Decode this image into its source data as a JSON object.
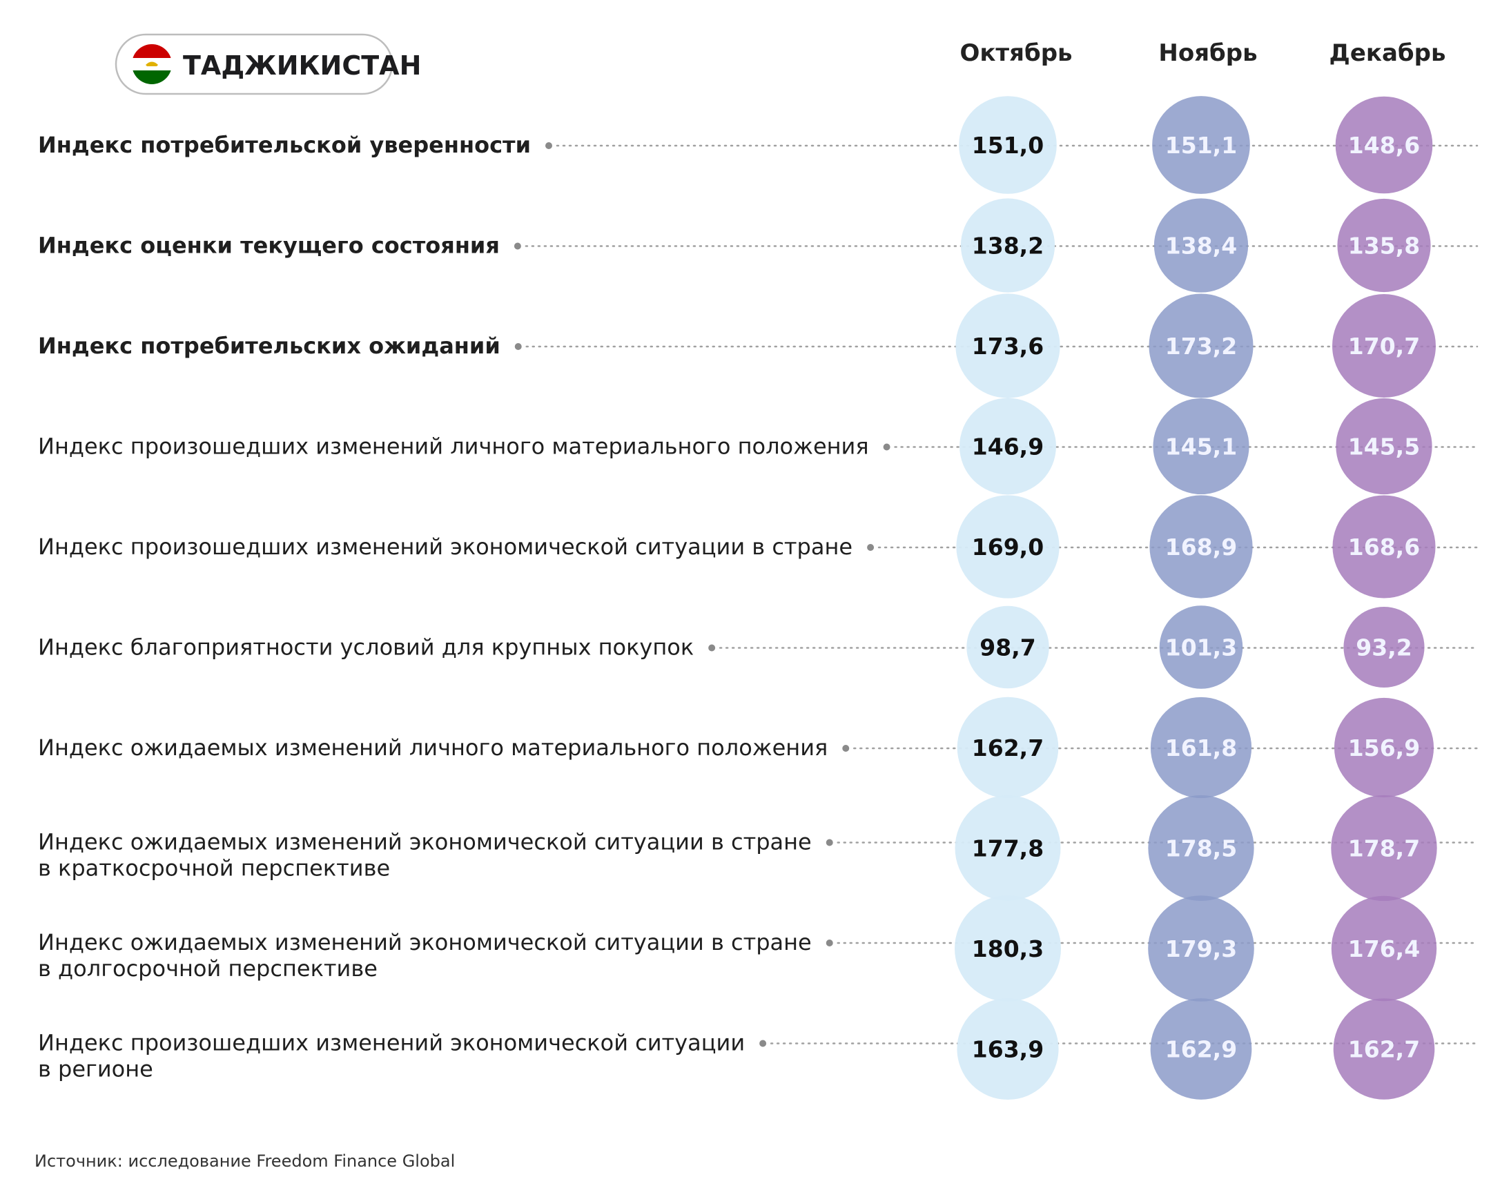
{
  "header": {
    "country": "ТАДЖИКИСТАН",
    "flag_colors": [
      "#cc0000",
      "#ffffff",
      "#006600"
    ]
  },
  "source": "Источник: исследование Freedom Finance Global",
  "colors": {
    "october": "#d6ebf8",
    "november": "#8c9bc9",
    "december": "#a67dbc",
    "dotted_line": "#a0a0a0"
  },
  "chart_data": {
    "type": "table",
    "months": [
      "Октябрь",
      "Ноябрь",
      "Декабрь"
    ],
    "rows": [
      {
        "label": [
          "Индекс потребительской уверенности"
        ],
        "bold": true,
        "values": [
          "151,0",
          "151,1",
          "148,6"
        ]
      },
      {
        "label": [
          "Индекс оценки текущего состояния"
        ],
        "bold": true,
        "values": [
          "138,2",
          "138,4",
          "135,8"
        ]
      },
      {
        "label": [
          "Индекс потребительских ожиданий"
        ],
        "bold": true,
        "values": [
          "173,6",
          "173,2",
          "170,7"
        ]
      },
      {
        "label": [
          "Индекс произошедших изменений личного материального положения"
        ],
        "bold": false,
        "values": [
          "146,9",
          "145,1",
          "145,5"
        ]
      },
      {
        "label": [
          "Индекс произошедших изменений экономической ситуации в стране"
        ],
        "bold": false,
        "values": [
          "169,0",
          "168,9",
          "168,6"
        ]
      },
      {
        "label": [
          "Индекс благоприятности условий для крупных покупок"
        ],
        "bold": false,
        "values": [
          "98,7",
          "101,3",
          "93,2"
        ]
      },
      {
        "label": [
          "Индекс ожидаемых изменений личного материального положения"
        ],
        "bold": false,
        "values": [
          "162,7",
          "161,8",
          "156,9"
        ]
      },
      {
        "label": [
          "Индекс ожидаемых изменений экономической ситуации в стране",
          "в краткосрочной перспективе"
        ],
        "bold": false,
        "values": [
          "177,8",
          "178,5",
          "178,7"
        ]
      },
      {
        "label": [
          "Индекс ожидаемых изменений экономической ситуации в стране",
          "в долгосрочной перспективе"
        ],
        "bold": false,
        "values": [
          "180,3",
          "179,3",
          "176,4"
        ]
      },
      {
        "label": [
          "Индекс произошедших изменений экономической ситуации",
          "в регионе"
        ],
        "bold": false,
        "values": [
          "163,9",
          "162,9",
          "162,7"
        ]
      }
    ]
  }
}
